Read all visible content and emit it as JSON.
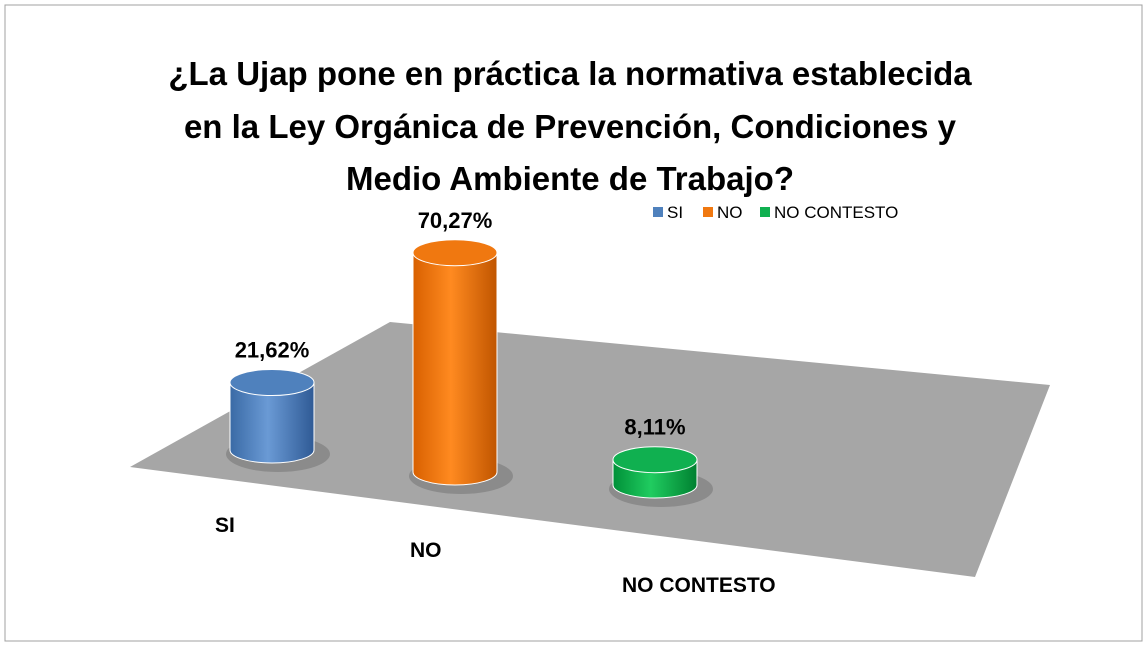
{
  "chart_data": {
    "type": "bar3d",
    "title": [
      "¿La Ujap pone en práctica la normativa establecida",
      "en la Ley Orgánica de Prevención, Condiciones y",
      "Medio Ambiente de Trabajo?"
    ],
    "categories": [
      "SI",
      "NO",
      "NO CONTESTO"
    ],
    "values": [
      21.62,
      70.27,
      8.11
    ],
    "value_labels": [
      "21,62%",
      "70,27%",
      "8,11%"
    ],
    "colors": [
      "#4f81bd",
      "#f07810",
      "#10b050"
    ]
  }
}
